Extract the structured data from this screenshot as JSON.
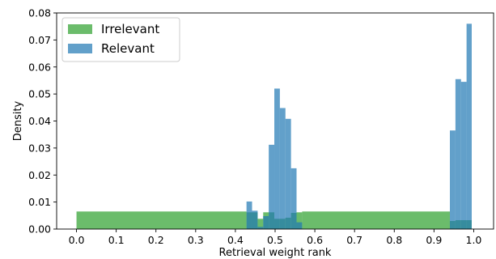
{
  "chart_data": {
    "type": "histogram",
    "xlabel": "Retrieval weight rank",
    "ylabel": "Density",
    "xlim": [
      -0.05,
      1.05
    ],
    "ylim": [
      0,
      0.08
    ],
    "x_ticks": [
      "0.0",
      "0.1",
      "0.2",
      "0.3",
      "0.4",
      "0.5",
      "0.6",
      "0.7",
      "0.8",
      "0.9",
      "1.0"
    ],
    "x_tick_values": [
      0.0,
      0.1,
      0.2,
      0.3,
      0.4,
      0.5,
      0.6,
      0.7,
      0.8,
      0.9,
      1.0
    ],
    "y_ticks": [
      "0.00",
      "0.01",
      "0.02",
      "0.03",
      "0.04",
      "0.05",
      "0.06",
      "0.07",
      "0.08"
    ],
    "y_tick_values": [
      0.0,
      0.01,
      0.02,
      0.03,
      0.04,
      0.05,
      0.06,
      0.07,
      0.08
    ],
    "legend_position": "top-left",
    "series": [
      {
        "name": "Irrelevant",
        "color": "#2ca02c",
        "bars": [
          {
            "x0": 0.0,
            "x1": 0.428,
            "value": 0.0065
          },
          {
            "x0": 0.428,
            "x1": 0.44,
            "value": 0.0062
          },
          {
            "x0": 0.44,
            "x1": 0.456,
            "value": 0.0062
          },
          {
            "x0": 0.456,
            "x1": 0.47,
            "value": 0.0038
          },
          {
            "x0": 0.47,
            "x1": 0.484,
            "value": 0.0062
          },
          {
            "x0": 0.484,
            "x1": 0.498,
            "value": 0.0062
          },
          {
            "x0": 0.498,
            "x1": 0.512,
            "value": 0.0038
          },
          {
            "x0": 0.512,
            "x1": 0.526,
            "value": 0.0038
          },
          {
            "x0": 0.526,
            "x1": 0.54,
            "value": 0.0042
          },
          {
            "x0": 0.54,
            "x1": 0.554,
            "value": 0.006
          },
          {
            "x0": 0.554,
            "x1": 0.568,
            "value": 0.0062
          },
          {
            "x0": 0.568,
            "x1": 0.94,
            "value": 0.0065
          },
          {
            "x0": 0.94,
            "x1": 0.954,
            "value": 0.003
          },
          {
            "x0": 0.954,
            "x1": 0.968,
            "value": 0.0033
          },
          {
            "x0": 0.968,
            "x1": 0.982,
            "value": 0.0033
          },
          {
            "x0": 0.982,
            "x1": 0.995,
            "value": 0.0033
          }
        ]
      },
      {
        "name": "Relevant",
        "color": "#1f77b4",
        "bars": [
          {
            "x0": 0.428,
            "x1": 0.442,
            "value": 0.0102
          },
          {
            "x0": 0.442,
            "x1": 0.456,
            "value": 0.0068
          },
          {
            "x0": 0.456,
            "x1": 0.47,
            "value": 0.0008
          },
          {
            "x0": 0.47,
            "x1": 0.484,
            "value": 0.0048
          },
          {
            "x0": 0.484,
            "x1": 0.498,
            "value": 0.0312
          },
          {
            "x0": 0.498,
            "x1": 0.512,
            "value": 0.052
          },
          {
            "x0": 0.512,
            "x1": 0.526,
            "value": 0.0448
          },
          {
            "x0": 0.526,
            "x1": 0.54,
            "value": 0.0408
          },
          {
            "x0": 0.54,
            "x1": 0.554,
            "value": 0.0225
          },
          {
            "x0": 0.554,
            "x1": 0.568,
            "value": 0.0025
          },
          {
            "x0": 0.94,
            "x1": 0.954,
            "value": 0.0365
          },
          {
            "x0": 0.954,
            "x1": 0.968,
            "value": 0.0555
          },
          {
            "x0": 0.968,
            "x1": 0.982,
            "value": 0.0545
          },
          {
            "x0": 0.982,
            "x1": 0.995,
            "value": 0.076
          }
        ]
      }
    ]
  }
}
